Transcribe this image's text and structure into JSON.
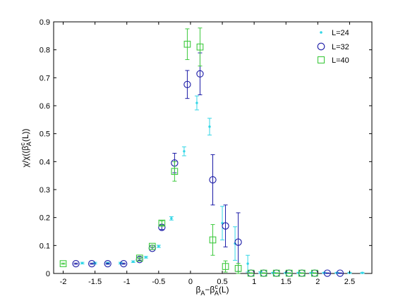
{
  "chart_data": {
    "type": "scatter",
    "xlabel_parts": {
      "base": "β",
      "sub1": "A",
      "minus": "−β",
      "sup": "c",
      "sub2": "A",
      "tail": "(L)"
    },
    "ylabel_parts": {
      "head": "χ/χ((β",
      "sup": "c",
      "sub": "A",
      "tail": "(L))"
    },
    "xlim": [
      -2.15,
      2.85
    ],
    "ylim": [
      0,
      0.9
    ],
    "xticks": [
      -2,
      -1.5,
      -1,
      -0.5,
      0,
      0.5,
      1,
      1.5,
      2,
      2.5
    ],
    "xtick_labels": [
      "-2",
      "-1.5",
      "-1",
      "-0.5",
      "0",
      "0.5",
      "1",
      "1.5",
      "2",
      "2.5"
    ],
    "yticks": [
      0,
      0.1,
      0.2,
      0.3,
      0.4,
      0.5,
      0.6,
      0.7,
      0.8,
      0.9
    ],
    "ytick_labels": [
      "0",
      "0.1",
      "0.2",
      "0.3",
      "0.4",
      "0.5",
      "0.6",
      "0.7",
      "0.8",
      "0.9"
    ],
    "legend_position": "top-right",
    "series": [
      {
        "name": "L=24",
        "marker": "dot",
        "color": "#33d6e6",
        "points": [
          {
            "x": -1.7,
            "y": 0.037,
            "err": 0.003
          },
          {
            "x": -1.5,
            "y": 0.037,
            "err": 0.003
          },
          {
            "x": -1.3,
            "y": 0.037,
            "err": 0.003
          },
          {
            "x": -1.1,
            "y": 0.037,
            "err": 0.003
          },
          {
            "x": -0.9,
            "y": 0.042,
            "err": 0.003
          },
          {
            "x": -0.7,
            "y": 0.058,
            "err": 0.003
          },
          {
            "x": -0.5,
            "y": 0.097,
            "err": 0.004
          },
          {
            "x": -0.3,
            "y": 0.197,
            "err": 0.006
          },
          {
            "x": -0.1,
            "y": 0.437,
            "err": 0.016
          },
          {
            "x": 0.1,
            "y": 0.61,
            "err": 0.025
          },
          {
            "x": 0.3,
            "y": 0.525,
            "err": 0.03
          },
          {
            "x": 0.5,
            "y": 0.18,
            "err": 0.06
          },
          {
            "x": 0.7,
            "y": 0.107,
            "err": 0.06
          },
          {
            "x": 0.9,
            "y": 0.035,
            "err": 0.03
          },
          {
            "x": 1.1,
            "y": 0.003,
            "err": 0.003
          },
          {
            "x": 1.3,
            "y": 0.002,
            "err": 0.002
          },
          {
            "x": 1.5,
            "y": 0.002,
            "err": 0.002
          },
          {
            "x": 1.7,
            "y": 0.002,
            "err": 0.002
          },
          {
            "x": 1.9,
            "y": 0.002,
            "err": 0.002
          },
          {
            "x": 2.1,
            "y": 0.002,
            "err": 0.002
          },
          {
            "x": 2.3,
            "y": 0.002,
            "err": 0.002
          },
          {
            "x": 2.5,
            "y": 0.002,
            "err": 0.002
          },
          {
            "x": 2.7,
            "y": 0.002,
            "err": 0.002
          }
        ]
      },
      {
        "name": "L=32",
        "marker": "circle",
        "color": "#1a1aa6",
        "points": [
          {
            "x": -1.8,
            "y": 0.035,
            "err": 0.002
          },
          {
            "x": -1.55,
            "y": 0.035,
            "err": 0.002
          },
          {
            "x": -1.3,
            "y": 0.035,
            "err": 0.002
          },
          {
            "x": -1.05,
            "y": 0.035,
            "err": 0.002
          },
          {
            "x": -0.8,
            "y": 0.05,
            "err": 0.003
          },
          {
            "x": -0.6,
            "y": 0.09,
            "err": 0.004
          },
          {
            "x": -0.45,
            "y": 0.165,
            "err": 0.008
          },
          {
            "x": -0.25,
            "y": 0.395,
            "err": 0.035
          },
          {
            "x": -0.05,
            "y": 0.676,
            "err": 0.05
          },
          {
            "x": 0.15,
            "y": 0.714,
            "err": 0.075
          },
          {
            "x": 0.35,
            "y": 0.335,
            "err": 0.09
          },
          {
            "x": 0.55,
            "y": 0.17,
            "err": 0.075
          },
          {
            "x": 0.75,
            "y": 0.112,
            "err": 0.105
          },
          {
            "x": 0.95,
            "y": 0.001,
            "err": 0.001
          },
          {
            "x": 1.15,
            "y": 0.001,
            "err": 0.001
          },
          {
            "x": 1.35,
            "y": 0.001,
            "err": 0.001
          },
          {
            "x": 1.55,
            "y": 0.001,
            "err": 0.001
          },
          {
            "x": 1.75,
            "y": 0.001,
            "err": 0.001
          },
          {
            "x": 1.95,
            "y": 0.001,
            "err": 0.001
          },
          {
            "x": 2.15,
            "y": 0.001,
            "err": 0.001
          },
          {
            "x": 2.35,
            "y": 0.001,
            "err": 0.001
          }
        ]
      },
      {
        "name": "L=40",
        "marker": "square",
        "color": "#3dc93d",
        "points": [
          {
            "x": -2.0,
            "y": 0.035,
            "err": 0.002
          },
          {
            "x": -0.8,
            "y": 0.055,
            "err": 0.003
          },
          {
            "x": -0.6,
            "y": 0.097,
            "err": 0.004
          },
          {
            "x": -0.45,
            "y": 0.18,
            "err": 0.008
          },
          {
            "x": -0.25,
            "y": 0.365,
            "err": 0.035
          },
          {
            "x": -0.05,
            "y": 0.82,
            "err": 0.055
          },
          {
            "x": 0.15,
            "y": 0.81,
            "err": 0.068
          },
          {
            "x": 0.35,
            "y": 0.12,
            "err": 0.055
          },
          {
            "x": 0.55,
            "y": 0.025,
            "err": 0.02
          },
          {
            "x": 0.75,
            "y": 0.018,
            "err": 0.018
          },
          {
            "x": 0.95,
            "y": 0.001,
            "err": 0.001
          },
          {
            "x": 1.15,
            "y": 0.001,
            "err": 0.001
          },
          {
            "x": 1.35,
            "y": 0.001,
            "err": 0.001
          },
          {
            "x": 1.55,
            "y": 0.001,
            "err": 0.001
          },
          {
            "x": 1.75,
            "y": 0.001,
            "err": 0.001
          },
          {
            "x": 1.95,
            "y": 0.001,
            "err": 0.001
          }
        ]
      }
    ]
  }
}
